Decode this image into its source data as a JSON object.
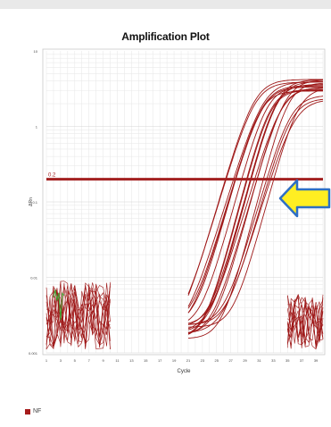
{
  "colors": {
    "curve": "#9e1717",
    "threshold": "#a32020",
    "grid": "#e6e6e6",
    "arrow_fill": "#ffee22",
    "arrow_stroke": "#2e6fc4"
  },
  "arrow_icon": "arrow-left-icon",
  "chart_data": {
    "type": "line",
    "title": "Amplification Plot",
    "xlabel": "Cycle",
    "ylabel": "ΔRn",
    "yscale": "log",
    "ylim": [
      0.001,
      10
    ],
    "xlim": [
      1,
      40
    ],
    "x_ticks": [
      "1",
      "3",
      "5",
      "7",
      "9",
      "11",
      "13",
      "15",
      "17",
      "19",
      "21",
      "23",
      "25",
      "27",
      "29",
      "31",
      "33",
      "35",
      "37",
      "39"
    ],
    "y_ticks": [
      "10",
      "1",
      "0.1",
      "0.01",
      "0.001"
    ],
    "threshold": {
      "value": 0.2,
      "label": "0.2"
    },
    "grid": true,
    "amplification": {
      "ct_range": [
        28,
        34
      ],
      "plateau_range": [
        2.2,
        4.4
      ],
      "curve_count": 20
    },
    "legend": [
      {
        "name": "NF"
      }
    ]
  }
}
